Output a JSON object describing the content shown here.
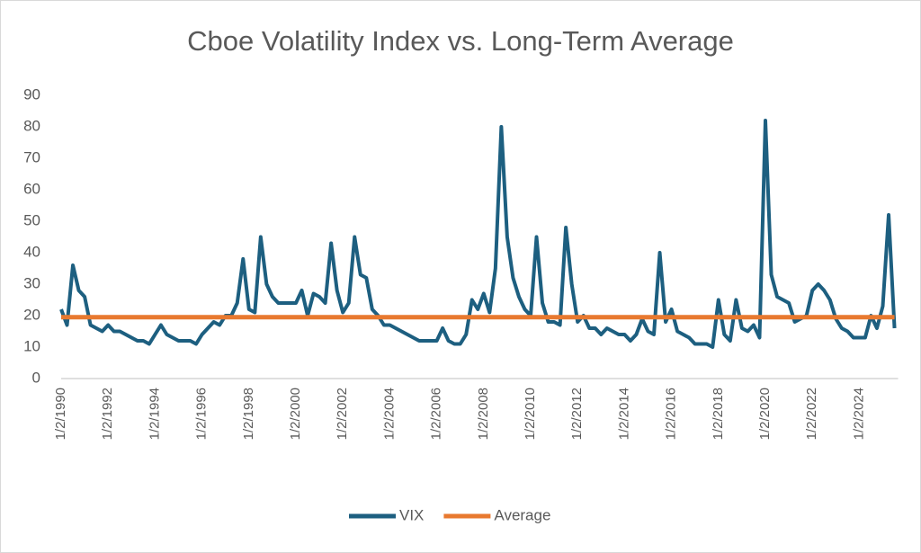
{
  "chart_data": {
    "type": "line",
    "title": "Cboe Volatility Index vs. Long-Term Average",
    "categories": [
      "1/2/1990",
      null,
      null,
      null,
      null,
      null,
      null,
      null,
      "1/2/1992",
      null,
      null,
      null,
      null,
      null,
      null,
      null,
      "1/2/1994",
      null,
      null,
      null,
      null,
      null,
      null,
      null,
      "1/2/1996",
      null,
      null,
      null,
      null,
      null,
      null,
      null,
      "1/2/1998",
      null,
      null,
      null,
      null,
      null,
      null,
      null,
      "1/2/2000",
      null,
      null,
      null,
      null,
      null,
      null,
      null,
      "1/2/2002",
      null,
      null,
      null,
      null,
      null,
      null,
      null,
      "1/2/2004",
      null,
      null,
      null,
      null,
      null,
      null,
      null,
      "1/2/2006",
      null,
      null,
      null,
      null,
      null,
      null,
      null,
      "1/2/2008",
      null,
      null,
      null,
      null,
      null,
      null,
      null,
      "1/2/2010",
      null,
      null,
      null,
      null,
      null,
      null,
      null,
      "1/2/2012",
      null,
      null,
      null,
      null,
      null,
      null,
      null,
      "1/2/2014",
      null,
      null,
      null,
      null,
      null,
      null,
      null,
      "1/2/2016",
      null,
      null,
      null,
      null,
      null,
      null,
      null,
      "1/2/2018",
      null,
      null,
      null,
      null,
      null,
      null,
      null,
      "1/2/2020",
      null,
      null,
      null,
      null,
      null,
      null,
      null,
      "1/2/2022",
      null,
      null,
      null,
      null,
      null,
      null,
      null,
      "1/2/2024",
      null,
      null,
      null,
      null,
      null,
      null
    ],
    "series": [
      {
        "name": "VIX",
        "color": "#1d5f80",
        "values": [
          22,
          17,
          36,
          28,
          26,
          17,
          16,
          15,
          17,
          15,
          15,
          14,
          13,
          12,
          12,
          11,
          14,
          17,
          14,
          13,
          12,
          12,
          12,
          11,
          14,
          16,
          18,
          17,
          20,
          20,
          24,
          38,
          22,
          21,
          45,
          30,
          26,
          24,
          24,
          24,
          24,
          28,
          20,
          27,
          26,
          24,
          43,
          28,
          21,
          24,
          45,
          33,
          32,
          22,
          20,
          17,
          17,
          16,
          15,
          14,
          13,
          12,
          12,
          12,
          12,
          16,
          12,
          11,
          11,
          14,
          25,
          22,
          27,
          21,
          35,
          80,
          45,
          32,
          26,
          22,
          20,
          45,
          24,
          18,
          18,
          17,
          48,
          30,
          18,
          20,
          16,
          16,
          14,
          16,
          15,
          14,
          14,
          12,
          14,
          19,
          15,
          14,
          40,
          18,
          22,
          15,
          14,
          13,
          11,
          11,
          11,
          10,
          25,
          14,
          12,
          25,
          16,
          15,
          17,
          13,
          82,
          33,
          26,
          25,
          24,
          18,
          19,
          20,
          28,
          30,
          28,
          25,
          19,
          16,
          15,
          13,
          13,
          13,
          20,
          16,
          23,
          52,
          16
        ]
      },
      {
        "name": "Average",
        "color": "#e8792f",
        "values": [
          19.5,
          19.5,
          19.5,
          19.5,
          19.5,
          19.5,
          19.5,
          19.5,
          19.5,
          19.5,
          19.5,
          19.5,
          19.5,
          19.5,
          19.5,
          19.5,
          19.5,
          19.5,
          19.5,
          19.5,
          19.5,
          19.5,
          19.5,
          19.5,
          19.5,
          19.5,
          19.5,
          19.5,
          19.5,
          19.5,
          19.5,
          19.5,
          19.5,
          19.5,
          19.5,
          19.5,
          19.5,
          19.5,
          19.5,
          19.5,
          19.5,
          19.5,
          19.5,
          19.5,
          19.5,
          19.5,
          19.5,
          19.5,
          19.5,
          19.5,
          19.5,
          19.5,
          19.5,
          19.5,
          19.5,
          19.5,
          19.5,
          19.5,
          19.5,
          19.5,
          19.5,
          19.5,
          19.5,
          19.5,
          19.5,
          19.5,
          19.5,
          19.5,
          19.5,
          19.5,
          19.5,
          19.5,
          19.5,
          19.5,
          19.5,
          19.5,
          19.5,
          19.5,
          19.5,
          19.5,
          19.5,
          19.5,
          19.5,
          19.5,
          19.5,
          19.5,
          19.5,
          19.5,
          19.5,
          19.5,
          19.5,
          19.5,
          19.5,
          19.5,
          19.5,
          19.5,
          19.5,
          19.5,
          19.5,
          19.5,
          19.5,
          19.5,
          19.5,
          19.5,
          19.5,
          19.5,
          19.5,
          19.5,
          19.5,
          19.5,
          19.5,
          19.5,
          19.5,
          19.5,
          19.5,
          19.5,
          19.5,
          19.5,
          19.5,
          19.5,
          19.5,
          19.5,
          19.5,
          19.5,
          19.5,
          19.5,
          19.5,
          19.5,
          19.5,
          19.5,
          19.5,
          19.5,
          19.5,
          19.5,
          19.5,
          19.5,
          19.5,
          19.5,
          19.5,
          19.5,
          19.5,
          19.5,
          19.5
        ]
      }
    ],
    "ylim": [
      0,
      90
    ],
    "yticks": [
      0,
      10,
      20,
      30,
      40,
      50,
      60,
      70,
      80,
      90
    ],
    "grid": false,
    "legend": "bottom"
  }
}
